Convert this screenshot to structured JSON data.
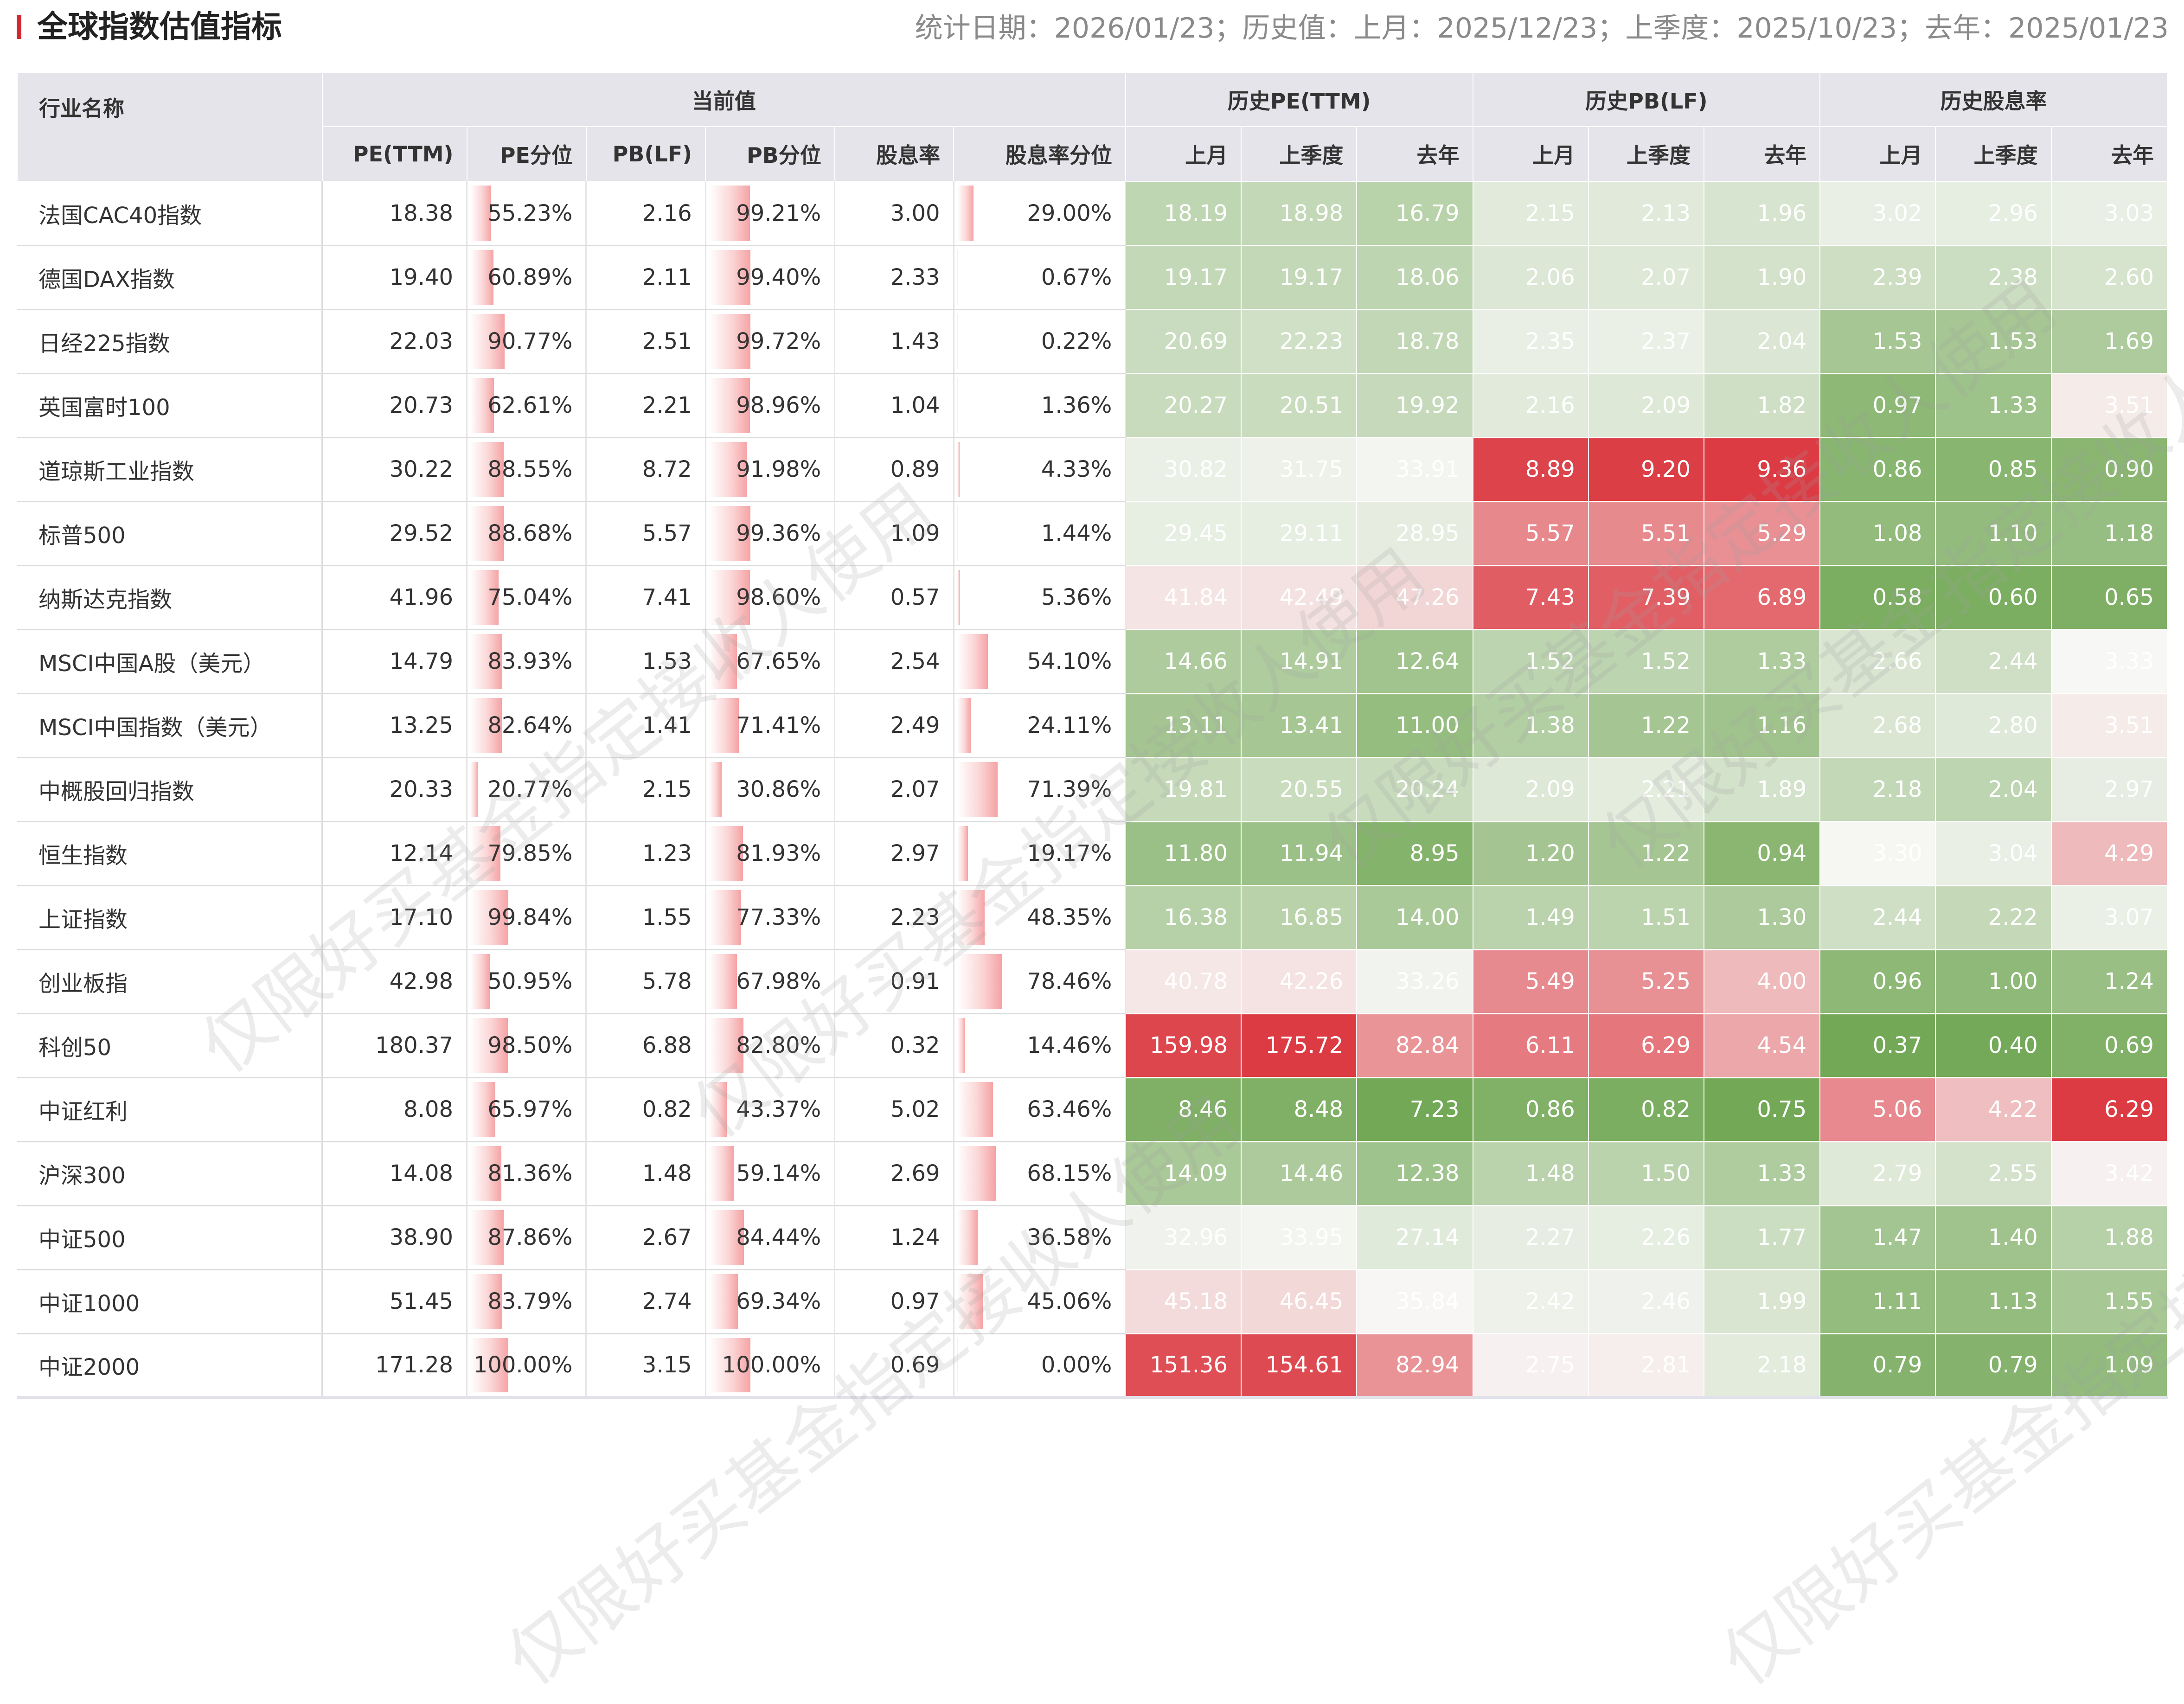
{
  "page": {
    "title": "全球指数估值指标",
    "meta": "统计日期：2026/01/23；历史值：上月：2025/12/23；上季度：2025/10/23；去年：2025/01/23",
    "watermark": "仅限好买基金指定接收人使用"
  },
  "header": {
    "name": "行业名称",
    "groups": [
      "当前值",
      "历史PE(TTM)",
      "历史PB(LF)",
      "历史股息率"
    ],
    "current_cols": [
      "PE(TTM)",
      "PE分位",
      "PB(LF)",
      "PB分位",
      "股息率",
      "股息率分位"
    ],
    "period_cols": [
      "上月",
      "上季度",
      "去年"
    ]
  },
  "colors": {
    "accent": "#d0282e",
    "header_bg": "#e4e4ea",
    "pct_bar": "#f5a3a5",
    "heat_low": "#72a856",
    "heat_mid": "#f7f7f5",
    "heat_high": "#dc3b44"
  },
  "rows": [
    {
      "name": "法国CAC40指数",
      "pe": "18.38",
      "pe_pct": "55.23%",
      "pb": "2.16",
      "pb_pct": "99.21%",
      "dy": "3.00",
      "dy_pct": "29.00%",
      "pe_hist": [
        "18.19",
        "18.98",
        "16.79"
      ],
      "pb_hist": [
        "2.15",
        "2.13",
        "1.96"
      ],
      "dy_hist": [
        "3.02",
        "2.96",
        "3.03"
      ]
    },
    {
      "name": "德国DAX指数",
      "pe": "19.40",
      "pe_pct": "60.89%",
      "pb": "2.11",
      "pb_pct": "99.40%",
      "dy": "2.33",
      "dy_pct": "0.67%",
      "pe_hist": [
        "19.17",
        "19.17",
        "18.06"
      ],
      "pb_hist": [
        "2.06",
        "2.07",
        "1.90"
      ],
      "dy_hist": [
        "2.39",
        "2.38",
        "2.60"
      ]
    },
    {
      "name": "日经225指数",
      "pe": "22.03",
      "pe_pct": "90.77%",
      "pb": "2.51",
      "pb_pct": "99.72%",
      "dy": "1.43",
      "dy_pct": "0.22%",
      "pe_hist": [
        "20.69",
        "22.23",
        "18.78"
      ],
      "pb_hist": [
        "2.35",
        "2.37",
        "2.04"
      ],
      "dy_hist": [
        "1.53",
        "1.53",
        "1.69"
      ]
    },
    {
      "name": "英国富时100",
      "pe": "20.73",
      "pe_pct": "62.61%",
      "pb": "2.21",
      "pb_pct": "98.96%",
      "dy": "1.04",
      "dy_pct": "1.36%",
      "pe_hist": [
        "20.27",
        "20.51",
        "19.92"
      ],
      "pb_hist": [
        "2.16",
        "2.09",
        "1.82"
      ],
      "dy_hist": [
        "0.97",
        "1.33",
        "3.51"
      ]
    },
    {
      "name": "道琼斯工业指数",
      "pe": "30.22",
      "pe_pct": "88.55%",
      "pb": "8.72",
      "pb_pct": "91.98%",
      "dy": "0.89",
      "dy_pct": "4.33%",
      "pe_hist": [
        "30.82",
        "31.75",
        "33.91"
      ],
      "pb_hist": [
        "8.89",
        "9.20",
        "9.36"
      ],
      "dy_hist": [
        "0.86",
        "0.85",
        "0.90"
      ]
    },
    {
      "name": "标普500",
      "pe": "29.52",
      "pe_pct": "88.68%",
      "pb": "5.57",
      "pb_pct": "99.36%",
      "dy": "1.09",
      "dy_pct": "1.44%",
      "pe_hist": [
        "29.45",
        "29.11",
        "28.95"
      ],
      "pb_hist": [
        "5.57",
        "5.51",
        "5.29"
      ],
      "dy_hist": [
        "1.08",
        "1.10",
        "1.18"
      ]
    },
    {
      "name": "纳斯达克指数",
      "pe": "41.96",
      "pe_pct": "75.04%",
      "pb": "7.41",
      "pb_pct": "98.60%",
      "dy": "0.57",
      "dy_pct": "5.36%",
      "pe_hist": [
        "41.84",
        "42.49",
        "47.26"
      ],
      "pb_hist": [
        "7.43",
        "7.39",
        "6.89"
      ],
      "dy_hist": [
        "0.58",
        "0.60",
        "0.65"
      ]
    },
    {
      "name": "MSCI中国A股（美元）",
      "pe": "14.79",
      "pe_pct": "83.93%",
      "pb": "1.53",
      "pb_pct": "67.65%",
      "dy": "2.54",
      "dy_pct": "54.10%",
      "pe_hist": [
        "14.66",
        "14.91",
        "12.64"
      ],
      "pb_hist": [
        "1.52",
        "1.52",
        "1.33"
      ],
      "dy_hist": [
        "2.66",
        "2.44",
        "3.33"
      ]
    },
    {
      "name": "MSCI中国指数（美元）",
      "pe": "13.25",
      "pe_pct": "82.64%",
      "pb": "1.41",
      "pb_pct": "71.41%",
      "dy": "2.49",
      "dy_pct": "24.11%",
      "pe_hist": [
        "13.11",
        "13.41",
        "11.00"
      ],
      "pb_hist": [
        "1.38",
        "1.22",
        "1.16"
      ],
      "dy_hist": [
        "2.68",
        "2.80",
        "3.51"
      ]
    },
    {
      "name": "中概股回归指数",
      "pe": "20.33",
      "pe_pct": "20.77%",
      "pb": "2.15",
      "pb_pct": "30.86%",
      "dy": "2.07",
      "dy_pct": "71.39%",
      "pe_hist": [
        "19.81",
        "20.55",
        "20.24"
      ],
      "pb_hist": [
        "2.09",
        "2.21",
        "1.89"
      ],
      "dy_hist": [
        "2.18",
        "2.04",
        "2.97"
      ]
    },
    {
      "name": "恒生指数",
      "pe": "12.14",
      "pe_pct": "79.85%",
      "pb": "1.23",
      "pb_pct": "81.93%",
      "dy": "2.97",
      "dy_pct": "19.17%",
      "pe_hist": [
        "11.80",
        "11.94",
        "8.95"
      ],
      "pb_hist": [
        "1.20",
        "1.22",
        "0.94"
      ],
      "dy_hist": [
        "3.30",
        "3.04",
        "4.29"
      ]
    },
    {
      "name": "上证指数",
      "pe": "17.10",
      "pe_pct": "99.84%",
      "pb": "1.55",
      "pb_pct": "77.33%",
      "dy": "2.23",
      "dy_pct": "48.35%",
      "pe_hist": [
        "16.38",
        "16.85",
        "14.00"
      ],
      "pb_hist": [
        "1.49",
        "1.51",
        "1.30"
      ],
      "dy_hist": [
        "2.44",
        "2.22",
        "3.07"
      ]
    },
    {
      "name": "创业板指",
      "pe": "42.98",
      "pe_pct": "50.95%",
      "pb": "5.78",
      "pb_pct": "67.98%",
      "dy": "0.91",
      "dy_pct": "78.46%",
      "pe_hist": [
        "40.78",
        "42.26",
        "33.26"
      ],
      "pb_hist": [
        "5.49",
        "5.25",
        "4.00"
      ],
      "dy_hist": [
        "0.96",
        "1.00",
        "1.24"
      ]
    },
    {
      "name": "科创50",
      "pe": "180.37",
      "pe_pct": "98.50%",
      "pb": "6.88",
      "pb_pct": "82.80%",
      "dy": "0.32",
      "dy_pct": "14.46%",
      "pe_hist": [
        "159.98",
        "175.72",
        "82.84"
      ],
      "pb_hist": [
        "6.11",
        "6.29",
        "4.54"
      ],
      "dy_hist": [
        "0.37",
        "0.40",
        "0.69"
      ]
    },
    {
      "name": "中证红利",
      "pe": "8.08",
      "pe_pct": "65.97%",
      "pb": "0.82",
      "pb_pct": "43.37%",
      "dy": "5.02",
      "dy_pct": "63.46%",
      "pe_hist": [
        "8.46",
        "8.48",
        "7.23"
      ],
      "pb_hist": [
        "0.86",
        "0.82",
        "0.75"
      ],
      "dy_hist": [
        "5.06",
        "4.22",
        "6.29"
      ]
    },
    {
      "name": "沪深300",
      "pe": "14.08",
      "pe_pct": "81.36%",
      "pb": "1.48",
      "pb_pct": "59.14%",
      "dy": "2.69",
      "dy_pct": "68.15%",
      "pe_hist": [
        "14.09",
        "14.46",
        "12.38"
      ],
      "pb_hist": [
        "1.48",
        "1.50",
        "1.33"
      ],
      "dy_hist": [
        "2.79",
        "2.55",
        "3.42"
      ]
    },
    {
      "name": "中证500",
      "pe": "38.90",
      "pe_pct": "87.86%",
      "pb": "2.67",
      "pb_pct": "84.44%",
      "dy": "1.24",
      "dy_pct": "36.58%",
      "pe_hist": [
        "32.96",
        "33.95",
        "27.14"
      ],
      "pb_hist": [
        "2.27",
        "2.26",
        "1.77"
      ],
      "dy_hist": [
        "1.47",
        "1.40",
        "1.88"
      ]
    },
    {
      "name": "中证1000",
      "pe": "51.45",
      "pe_pct": "83.79%",
      "pb": "2.74",
      "pb_pct": "69.34%",
      "dy": "0.97",
      "dy_pct": "45.06%",
      "pe_hist": [
        "45.18",
        "46.45",
        "35.84"
      ],
      "pb_hist": [
        "2.42",
        "2.46",
        "1.99"
      ],
      "dy_hist": [
        "1.11",
        "1.13",
        "1.55"
      ]
    },
    {
      "name": "中证2000",
      "pe": "171.28",
      "pe_pct": "100.00%",
      "pb": "3.15",
      "pb_pct": "100.00%",
      "dy": "0.69",
      "dy_pct": "0.00%",
      "pe_hist": [
        "151.36",
        "154.61",
        "82.94"
      ],
      "pb_hist": [
        "2.75",
        "2.81",
        "2.18"
      ],
      "dy_hist": [
        "0.79",
        "0.79",
        "1.09"
      ]
    }
  ]
}
